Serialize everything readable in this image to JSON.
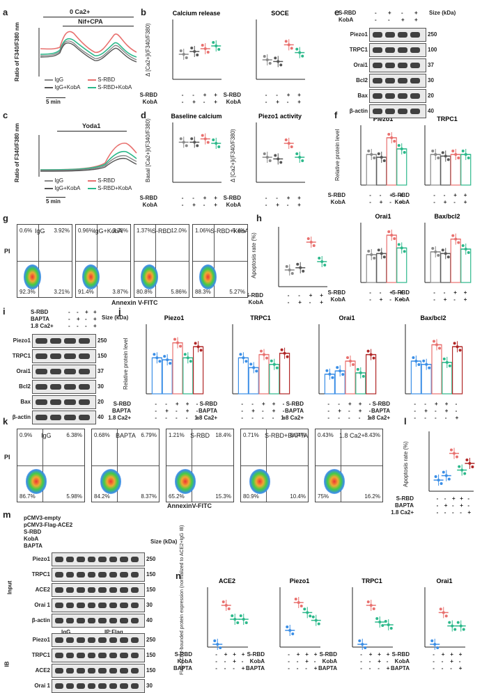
{
  "panels": {
    "a": {
      "label": "a",
      "bar_top": "0 Ca2+",
      "bar_sub": "Nif+CPA",
      "ylabel": "Ratio of F340/F380 nm",
      "scale": "5 min",
      "legend": [
        "IgG",
        "S-RBD",
        "IgG+KobA",
        "S-RBD+KobA"
      ]
    },
    "c": {
      "label": "c",
      "bar_top": "Yoda1",
      "ylabel": "Ratio of F340/F380 nm",
      "scale": "5 min",
      "legend": [
        "IgG",
        "S-RBD",
        "IgG+KobA",
        "S-RBD+KobA"
      ]
    },
    "b": {
      "label": "b",
      "titles": [
        "Calcium release",
        "SOCE"
      ],
      "ylabel": "Δ [Ca2+]i(F340/F380)"
    },
    "d": {
      "label": "d",
      "titles": [
        "Baseline calcium",
        "Piezo1 activity"
      ],
      "ylabels": [
        "Basal [Ca2+]i(F340/F380)",
        "Δ [Ca2+]i(F340/F380)"
      ]
    },
    "e": {
      "label": "e",
      "rows": [
        "Piezo1",
        "TRPC1",
        "Orai1",
        "Bcl2",
        "Bax",
        "β-actin"
      ],
      "sizes": [
        "250",
        "100",
        "37",
        "30",
        "20",
        "40"
      ],
      "cond": [
        "S-RBD",
        "KobA"
      ],
      "size_hdr": "Size (kDa)"
    },
    "f": {
      "label": "f",
      "titles": [
        "Piezo1",
        "TRPC1",
        "Orai1",
        "Bax/bcl2"
      ],
      "ylabel": "Relative protein level"
    },
    "g": {
      "label": "g",
      "titles": [
        "IgG",
        "IgG+KobA",
        "S-RBD",
        "S-RBD+KobA"
      ],
      "ylabel": "PI",
      "xlabel": "Annexin V-FITC",
      "quads": [
        [
          "0.6%",
          "3.92%",
          "92.3%",
          "3.21%"
        ],
        [
          "0.96%",
          "3.78%",
          "91.4%",
          "3.87%"
        ],
        [
          "1.37%",
          "12.0%",
          "80.8%",
          "5.86%"
        ],
        [
          "1.06%",
          "5.4%",
          "88.3%",
          "5.27%"
        ]
      ]
    },
    "h": {
      "label": "h",
      "ylabel": "Apoptosis rate (%)"
    },
    "i": {
      "label": "i",
      "rows": [
        "Piezo1",
        "TRPC1",
        "Orai1",
        "Bcl2",
        "Bax",
        "β-actin"
      ],
      "sizes": [
        "250",
        "150",
        "37",
        "30",
        "20",
        "40"
      ],
      "cond": [
        "S-RBD",
        "BAPTA",
        "1.8 Ca2+"
      ],
      "size_hdr": "Size (kDa)"
    },
    "j": {
      "label": "j",
      "titles": [
        "Piezo1",
        "TRPC1",
        "Orai1",
        "Bax/bcl2"
      ],
      "ylabel": "Relative protein level"
    },
    "k": {
      "label": "k",
      "titles": [
        "IgG",
        "BAPTA",
        "S-RBD",
        "S-RBD+BAPTA",
        "1.8 Ca2+"
      ],
      "ylabel": "PI",
      "xlabel": "AnnexinV-FITC",
      "quads": [
        [
          "0.9%",
          "6.38%",
          "86.7%",
          "5.98%"
        ],
        [
          "0.68%",
          "6.79%",
          "84.2%",
          "8.37%"
        ],
        [
          "1.21%",
          "18.4%",
          "65.2%",
          "15.3%"
        ],
        [
          "0.71%",
          "8.04%",
          "80.9%",
          "10.4%"
        ],
        [
          "0.43%",
          "8.43%",
          "75%",
          "16.2%"
        ]
      ]
    },
    "l": {
      "label": "l",
      "ylabel": "Apoptosis rate (%)"
    },
    "m": {
      "label": "m",
      "cond": [
        "pCMV3-empty",
        "pCMV3-Flag-ACE2",
        "S-RBD",
        "KobA",
        "BAPTA"
      ],
      "input_rows": [
        "Piezo1",
        "TRPC1",
        "ACE2",
        "Orai 1",
        "β-actin"
      ],
      "input_sizes": [
        "250",
        "150",
        "150",
        "30",
        "40"
      ],
      "ip_rows": [
        "Piezo1",
        "TRPC1",
        "ACE2",
        "Orai 1"
      ],
      "ip_sizes": [
        "250",
        "150",
        "150",
        "30"
      ],
      "side_input": "Input",
      "side_ib": "IB",
      "ip_hdr": "IP:Flag",
      "igg_hdr": "IgG",
      "size_hdr": "Size (kDa)"
    },
    "n": {
      "label": "n",
      "titles": [
        "ACE2",
        "Piezo1",
        "TRPC1",
        "Orai1"
      ],
      "ylabel": "Flag-ACE2-bounded protein expression (normalized to ACE2+IgG IB)"
    }
  },
  "cond_labels": {
    "srbd": "S-RBD",
    "koba": "KobA",
    "bapta": "BAPTA",
    "ca": "1.8 Ca2+"
  },
  "colors": {
    "igg": "#888888",
    "srbd": "#e8706e",
    "igg_koba": "#555555",
    "srbd_koba": "#2bb88a",
    "blue": "#3a8ee6",
    "darkred": "#b02626"
  }
}
